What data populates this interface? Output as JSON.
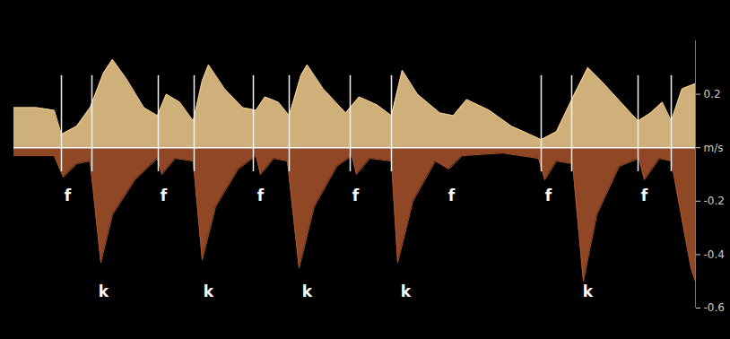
{
  "chart_data": {
    "type": "area",
    "ylim": [
      -0.6,
      0.4
    ],
    "yticks": [
      0.2,
      {
        "value": 0,
        "label": "m/s"
      },
      -0.2,
      -0.4,
      -0.6
    ],
    "xlim": [
      0,
      760
    ],
    "tick_labels": "y",
    "series": [
      {
        "color": "#f3cf8f",
        "x": [
          0,
          25,
          45,
          53,
          70,
          85,
          100,
          110,
          125,
          145,
          160,
          170,
          185,
          200,
          210,
          217,
          235,
          255,
          270,
          280,
          295,
          307,
          320,
          327,
          345,
          370,
          385,
          405,
          421,
          433,
          450,
          475,
          490,
          505,
          530,
          555,
          575,
          588,
          605,
          625,
          640,
          655,
          685,
          696,
          710,
          723,
          733,
          745,
          760
        ],
        "values": [
          0.15,
          0.15,
          0.14,
          0.05,
          0.08,
          0.15,
          0.28,
          0.33,
          0.26,
          0.15,
          0.12,
          0.2,
          0.17,
          0.1,
          0.25,
          0.31,
          0.22,
          0.15,
          0.14,
          0.19,
          0.17,
          0.12,
          0.27,
          0.31,
          0.22,
          0.13,
          0.19,
          0.16,
          0.12,
          0.29,
          0.2,
          0.13,
          0.12,
          0.18,
          0.14,
          0.08,
          0.05,
          0.03,
          0.06,
          0.2,
          0.3,
          0.25,
          0.14,
          0.1,
          0.13,
          0.17,
          0.1,
          0.22,
          0.24
        ]
      },
      {
        "color": "#a9542c",
        "x": [
          0,
          45,
          55,
          70,
          85,
          97,
          110,
          135,
          160,
          165,
          180,
          200,
          210,
          225,
          250,
          270,
          275,
          290,
          305,
          318,
          335,
          360,
          377,
          382,
          397,
          421,
          428,
          445,
          470,
          485,
          500,
          545,
          585,
          592,
          605,
          623,
          635,
          650,
          675,
          697,
          703,
          720,
          733,
          755,
          760
        ],
        "values": [
          -0.03,
          -0.03,
          -0.11,
          -0.06,
          -0.05,
          -0.43,
          -0.25,
          -0.12,
          -0.04,
          -0.1,
          -0.04,
          -0.05,
          -0.42,
          -0.22,
          -0.08,
          -0.03,
          -0.1,
          -0.04,
          -0.05,
          -0.45,
          -0.22,
          -0.07,
          -0.03,
          -0.1,
          -0.04,
          -0.05,
          -0.43,
          -0.2,
          -0.05,
          -0.08,
          -0.03,
          -0.02,
          -0.04,
          -0.12,
          -0.05,
          -0.06,
          -0.5,
          -0.25,
          -0.07,
          -0.04,
          -0.12,
          -0.04,
          -0.05,
          -0.45,
          -0.5
        ]
      }
    ],
    "event_lines": [
      53,
      87,
      161,
      201,
      267,
      307,
      375,
      421,
      588,
      622,
      696,
      733
    ],
    "event_line_range": [
      -0.09,
      0.27
    ],
    "annotations": [
      {
        "text": "f",
        "x": 60,
        "y": -0.18
      },
      {
        "text": "f",
        "x": 167,
        "y": -0.18
      },
      {
        "text": "f",
        "x": 275,
        "y": -0.18
      },
      {
        "text": "f",
        "x": 381,
        "y": -0.18
      },
      {
        "text": "f",
        "x": 488,
        "y": -0.18
      },
      {
        "text": "f",
        "x": 596,
        "y": -0.18
      },
      {
        "text": "f",
        "x": 703,
        "y": -0.18
      },
      {
        "text": "k",
        "x": 100,
        "y": -0.54
      },
      {
        "text": "k",
        "x": 217,
        "y": -0.54
      },
      {
        "text": "k",
        "x": 327,
        "y": -0.54
      },
      {
        "text": "k",
        "x": 437,
        "y": -0.54
      },
      {
        "text": "k",
        "x": 640,
        "y": -0.54
      }
    ]
  }
}
